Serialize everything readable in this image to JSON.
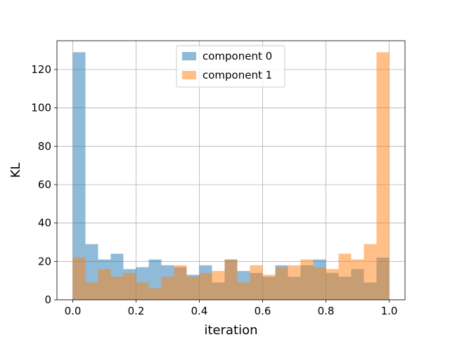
{
  "chart_data": {
    "type": "bar",
    "subtype": "histogram",
    "title": "",
    "xlabel": "iteration",
    "ylabel": "KL",
    "xlim": [
      -0.05,
      1.05
    ],
    "ylim": [
      0,
      135
    ],
    "grid": true,
    "legend_position": "top-center",
    "bin_edges": [
      0.0,
      0.04,
      0.08,
      0.12,
      0.16,
      0.2,
      0.24,
      0.28,
      0.32,
      0.36,
      0.4,
      0.44,
      0.48,
      0.52,
      0.56,
      0.6,
      0.64,
      0.68,
      0.72,
      0.76,
      0.8,
      0.84,
      0.88,
      0.92,
      0.96,
      1.0
    ],
    "xticks": [
      "0.0",
      "0.2",
      "0.4",
      "0.6",
      "0.8",
      "1.0"
    ],
    "yticks": [
      "0",
      "20",
      "40",
      "60",
      "80",
      "100",
      "120"
    ],
    "series": [
      {
        "name": "component 0",
        "color": "#1f77b4",
        "opacity": 0.5,
        "values": [
          129,
          29,
          21,
          24,
          16,
          17,
          21,
          18,
          17,
          13,
          18,
          9,
          21,
          15,
          14,
          12,
          18,
          12,
          18,
          21,
          14,
          12,
          16,
          9,
          22
        ]
      },
      {
        "name": "component 1",
        "color": "#ff7f0e",
        "opacity": 0.5,
        "values": [
          22,
          9,
          16,
          12,
          14,
          9,
          6,
          12,
          18,
          12,
          14,
          15,
          21,
          9,
          18,
          13,
          17,
          18,
          21,
          17,
          16,
          24,
          21,
          29,
          129
        ]
      }
    ]
  }
}
